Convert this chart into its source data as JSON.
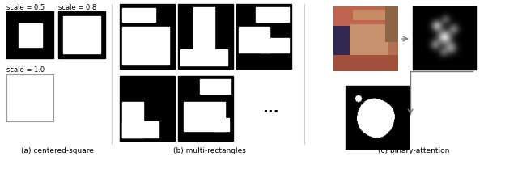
{
  "labels": {
    "a": "(a) centered-square",
    "b": "(b) multi-rectangles",
    "c": "(c) binary-attention"
  },
  "scale_labels": {
    "s05": "scale = 0.5",
    "s08": "scale = 0.8",
    "s10": "scale = 1.0"
  },
  "dots": "...",
  "bg_color": "#ffffff",
  "black": "#000000",
  "white": "#ffffff",
  "gray_border": "#999999",
  "divider_color": "#cccccc",
  "arrow_color": "#777777"
}
